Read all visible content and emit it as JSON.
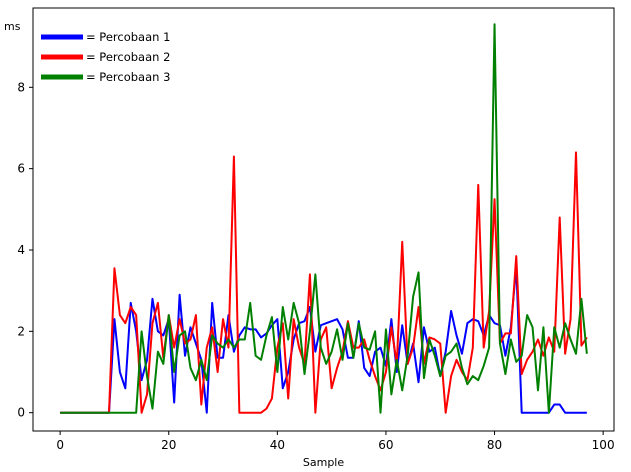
{
  "chart_data": {
    "type": "line",
    "xlabel": "Sample",
    "ylabel": "ms",
    "xlim": [
      -5,
      102
    ],
    "ylim": [
      -0.45,
      9.95
    ],
    "xticks": [
      0,
      20,
      40,
      60,
      80,
      100
    ],
    "yticks": [
      0,
      2,
      4,
      6,
      8
    ],
    "grid": false,
    "legend_position": "top-left",
    "series": [
      {
        "name": "Percobaan 1",
        "color": "#0000ff",
        "x": [
          0,
          1,
          2,
          3,
          4,
          5,
          6,
          7,
          8,
          9,
          10,
          11,
          12,
          13,
          14,
          15,
          16,
          17,
          18,
          19,
          20,
          21,
          22,
          23,
          24,
          25,
          26,
          27,
          28,
          29,
          30,
          31,
          32,
          33,
          34,
          35,
          36,
          37,
          38,
          39,
          40,
          41,
          42,
          43,
          44,
          45,
          46,
          47,
          48,
          49,
          50,
          51,
          52,
          53,
          54,
          55,
          56,
          57,
          58,
          59,
          60,
          61,
          62,
          63,
          64,
          65,
          66,
          67,
          68,
          69,
          70,
          71,
          72,
          73,
          74,
          75,
          76,
          77,
          78,
          79,
          80,
          81,
          82,
          83,
          84,
          85,
          86,
          87,
          88,
          89,
          90,
          91,
          92,
          93,
          94,
          95,
          96,
          97
        ],
        "y": [
          0,
          0,
          0,
          0,
          0,
          0,
          0,
          0,
          0,
          0,
          2.3,
          1.0,
          0.6,
          2.7,
          2.0,
          0.8,
          1.3,
          2.8,
          2.0,
          1.9,
          2.3,
          0.25,
          2.9,
          1.4,
          2.1,
          1.7,
          1.3,
          0,
          2.7,
          1.35,
          1.35,
          2.4,
          1.5,
          1.9,
          2.1,
          2.05,
          2.05,
          1.85,
          1.95,
          2.15,
          2.3,
          0.6,
          1.0,
          1.8,
          2.2,
          2.25,
          2.6,
          1.5,
          2.15,
          2.2,
          2.25,
          2.3,
          2.05,
          1.35,
          1.35,
          2.25,
          1.1,
          0.9,
          1.5,
          1.6,
          1.15,
          2.3,
          1.0,
          2.15,
          1.2,
          1.7,
          0.75,
          2.1,
          1.5,
          1.6,
          0.9,
          1.5,
          2.5,
          1.9,
          1.45,
          2.2,
          2.3,
          2.25,
          1.9,
          2.4,
          2.2,
          2.15,
          1.4,
          2.1,
          3.6,
          0,
          0,
          0,
          0,
          0,
          0,
          0.2,
          0.2,
          0,
          0,
          0,
          0,
          0
        ]
      },
      {
        "name": "Percobaan 2",
        "color": "#ff0000",
        "x": [
          0,
          1,
          2,
          3,
          4,
          5,
          6,
          7,
          8,
          9,
          10,
          11,
          12,
          13,
          14,
          15,
          16,
          17,
          18,
          19,
          20,
          21,
          22,
          23,
          24,
          25,
          26,
          27,
          28,
          29,
          30,
          31,
          32,
          33,
          34,
          35,
          36,
          37,
          38,
          39,
          40,
          41,
          42,
          43,
          44,
          45,
          46,
          47,
          48,
          49,
          50,
          51,
          52,
          53,
          54,
          55,
          56,
          57,
          58,
          59,
          60,
          61,
          62,
          63,
          64,
          65,
          66,
          67,
          68,
          69,
          70,
          71,
          72,
          73,
          74,
          75,
          76,
          77,
          78,
          79,
          80,
          81,
          82,
          83,
          84,
          85,
          86,
          87,
          88,
          89,
          90,
          91,
          92,
          93,
          94,
          95,
          96,
          97
        ],
        "y": [
          0,
          0,
          0,
          0,
          0,
          0,
          0,
          0,
          0,
          0,
          3.55,
          2.4,
          2.2,
          2.6,
          2.4,
          0,
          0.45,
          2.2,
          2.7,
          1.35,
          2.4,
          1.6,
          2.3,
          1.7,
          1.8,
          2.4,
          0.2,
          1.6,
          2.1,
          1.0,
          2.3,
          1.6,
          6.3,
          0,
          0,
          0,
          0,
          0,
          0.1,
          0.35,
          1.6,
          2.2,
          0.35,
          2.3,
          1.6,
          1.2,
          3.4,
          0,
          1.8,
          2.1,
          0.6,
          1.1,
          1.5,
          2.25,
          1.6,
          1.6,
          1.8,
          1.3,
          0.9,
          0.55,
          1.0,
          2.1,
          1.2,
          4.2,
          1.2,
          1.6,
          2.6,
          1.2,
          1.85,
          1.8,
          1.7,
          0,
          0.9,
          1.3,
          1.0,
          0.8,
          1.6,
          5.6,
          1.6,
          2.5,
          5.25,
          1.7,
          1.95,
          1.95,
          3.85,
          0.95,
          1.3,
          1.5,
          1.8,
          1.4,
          1.85,
          1.5,
          4.8,
          1.45,
          2.3,
          6.4,
          1.65,
          1.85
        ]
      },
      {
        "name": "Percobaan 3",
        "color": "#008000",
        "x": [
          0,
          1,
          2,
          3,
          4,
          5,
          6,
          7,
          8,
          9,
          10,
          11,
          12,
          13,
          14,
          15,
          16,
          17,
          18,
          19,
          20,
          21,
          22,
          23,
          24,
          25,
          26,
          27,
          28,
          29,
          30,
          31,
          32,
          33,
          34,
          35,
          36,
          37,
          38,
          39,
          40,
          41,
          42,
          43,
          44,
          45,
          46,
          47,
          48,
          49,
          50,
          51,
          52,
          53,
          54,
          55,
          56,
          57,
          58,
          59,
          60,
          61,
          62,
          63,
          64,
          65,
          66,
          67,
          68,
          69,
          70,
          71,
          72,
          73,
          74,
          75,
          76,
          77,
          78,
          79,
          80,
          81,
          82,
          83,
          84,
          85,
          86,
          87,
          88,
          89,
          90,
          91,
          92,
          93,
          94,
          95,
          96,
          97
        ],
        "y": [
          0,
          0,
          0,
          0,
          0,
          0,
          0,
          0,
          0,
          0,
          0,
          0,
          0,
          0,
          0,
          2.0,
          0.9,
          0.1,
          1.5,
          1.2,
          2.4,
          1.0,
          1.9,
          2.0,
          1.1,
          0.8,
          1.3,
          0.8,
          1.9,
          1.7,
          1.6,
          1.8,
          1.6,
          1.8,
          1.8,
          2.7,
          1.4,
          1.3,
          1.9,
          2.35,
          1.0,
          2.6,
          1.8,
          2.7,
          2.2,
          0.95,
          2.0,
          3.4,
          1.6,
          1.2,
          1.5,
          2.05,
          1.3,
          2.2,
          1.35,
          2.2,
          1.6,
          1.55,
          2.0,
          0,
          2.05,
          0.45,
          1.3,
          0.55,
          1.4,
          2.85,
          3.45,
          0.85,
          1.8,
          1.4,
          0.9,
          1.4,
          1.5,
          1.7,
          1.1,
          0.7,
          0.9,
          0.8,
          1.15,
          1.6,
          9.55,
          1.7,
          0.95,
          1.8,
          1.25,
          1.4,
          2.4,
          2.1,
          0.55,
          2.1,
          0,
          2.1,
          1.6,
          2.2,
          1.8,
          1.45,
          2.8,
          1.45
        ]
      }
    ]
  }
}
